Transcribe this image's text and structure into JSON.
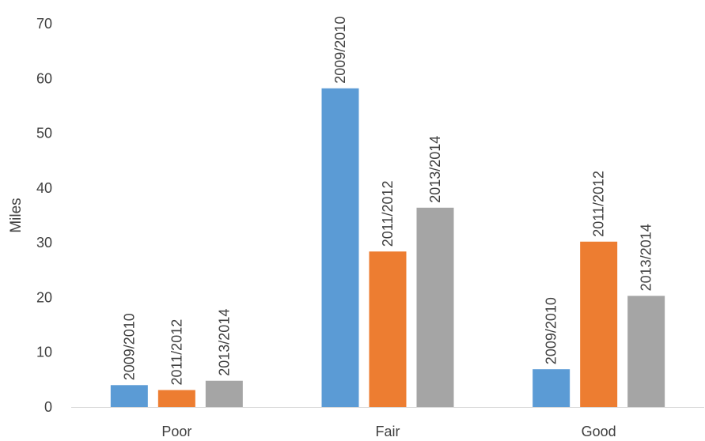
{
  "chart_data": {
    "type": "bar",
    "title": "",
    "xlabel": "",
    "ylabel": "Miles",
    "ylim": [
      0,
      70
    ],
    "yticks": [
      0,
      10,
      20,
      30,
      40,
      50,
      60,
      70
    ],
    "categories": [
      "Poor",
      "Fair",
      "Good"
    ],
    "series": [
      {
        "name": "2009/2010",
        "values": [
          4,
          58.2,
          6.9
        ],
        "color": "#5b9bd5"
      },
      {
        "name": "2011/2012",
        "values": [
          3.1,
          28.4,
          30.2
        ],
        "color": "#ed7d31"
      },
      {
        "name": "2013/2014",
        "values": [
          4.8,
          36.4,
          20.3
        ],
        "color": "#a5a5a5"
      }
    ],
    "data_labels": "series name",
    "grid": false,
    "legend": "none"
  }
}
